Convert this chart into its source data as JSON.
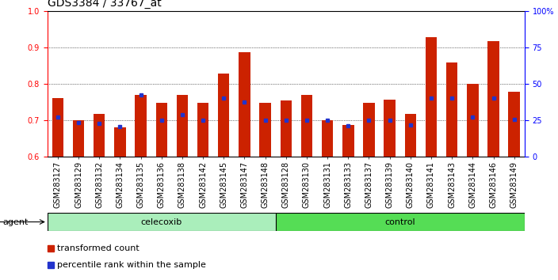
{
  "title": "GDS3384 / 33767_at",
  "categories": [
    "GSM283127",
    "GSM283129",
    "GSM283132",
    "GSM283134",
    "GSM283135",
    "GSM283136",
    "GSM283138",
    "GSM283142",
    "GSM283145",
    "GSM283147",
    "GSM283148",
    "GSM283128",
    "GSM283130",
    "GSM283131",
    "GSM283133",
    "GSM283137",
    "GSM283139",
    "GSM283140",
    "GSM283141",
    "GSM283143",
    "GSM283144",
    "GSM283146",
    "GSM283149"
  ],
  "red_values": [
    0.762,
    0.7,
    0.718,
    0.682,
    0.77,
    0.748,
    0.77,
    0.748,
    0.828,
    0.888,
    0.748,
    0.755,
    0.77,
    0.7,
    0.688,
    0.748,
    0.756,
    0.718,
    0.928,
    0.86,
    0.8,
    0.918,
    0.778
  ],
  "blue_values": [
    0.71,
    0.695,
    0.692,
    0.683,
    0.77,
    0.7,
    0.715,
    0.7,
    0.762,
    0.75,
    0.7,
    0.7,
    0.7,
    0.7,
    0.685,
    0.7,
    0.7,
    0.688,
    0.762,
    0.762,
    0.71,
    0.762,
    0.702
  ],
  "celecoxib_count": 11,
  "control_count": 12,
  "ylim_left": [
    0.6,
    1.0
  ],
  "ylim_right": [
    0,
    100
  ],
  "yticks_left": [
    0.6,
    0.7,
    0.8,
    0.9,
    1.0
  ],
  "yticks_right": [
    0,
    25,
    50,
    75,
    100
  ],
  "ytick_labels_right": [
    "0",
    "25",
    "50",
    "75",
    "100%"
  ],
  "bar_color": "#cc2200",
  "dot_color": "#2233cc",
  "celecoxib_color": "#aaeebb",
  "control_color": "#55dd55",
  "agent_label": "agent",
  "group_label_celecoxib": "celecoxib",
  "group_label_control": "control",
  "legend_red": "transformed count",
  "legend_blue": "percentile rank within the sample",
  "title_fontsize": 10,
  "tick_fontsize": 7,
  "bar_width": 0.55
}
